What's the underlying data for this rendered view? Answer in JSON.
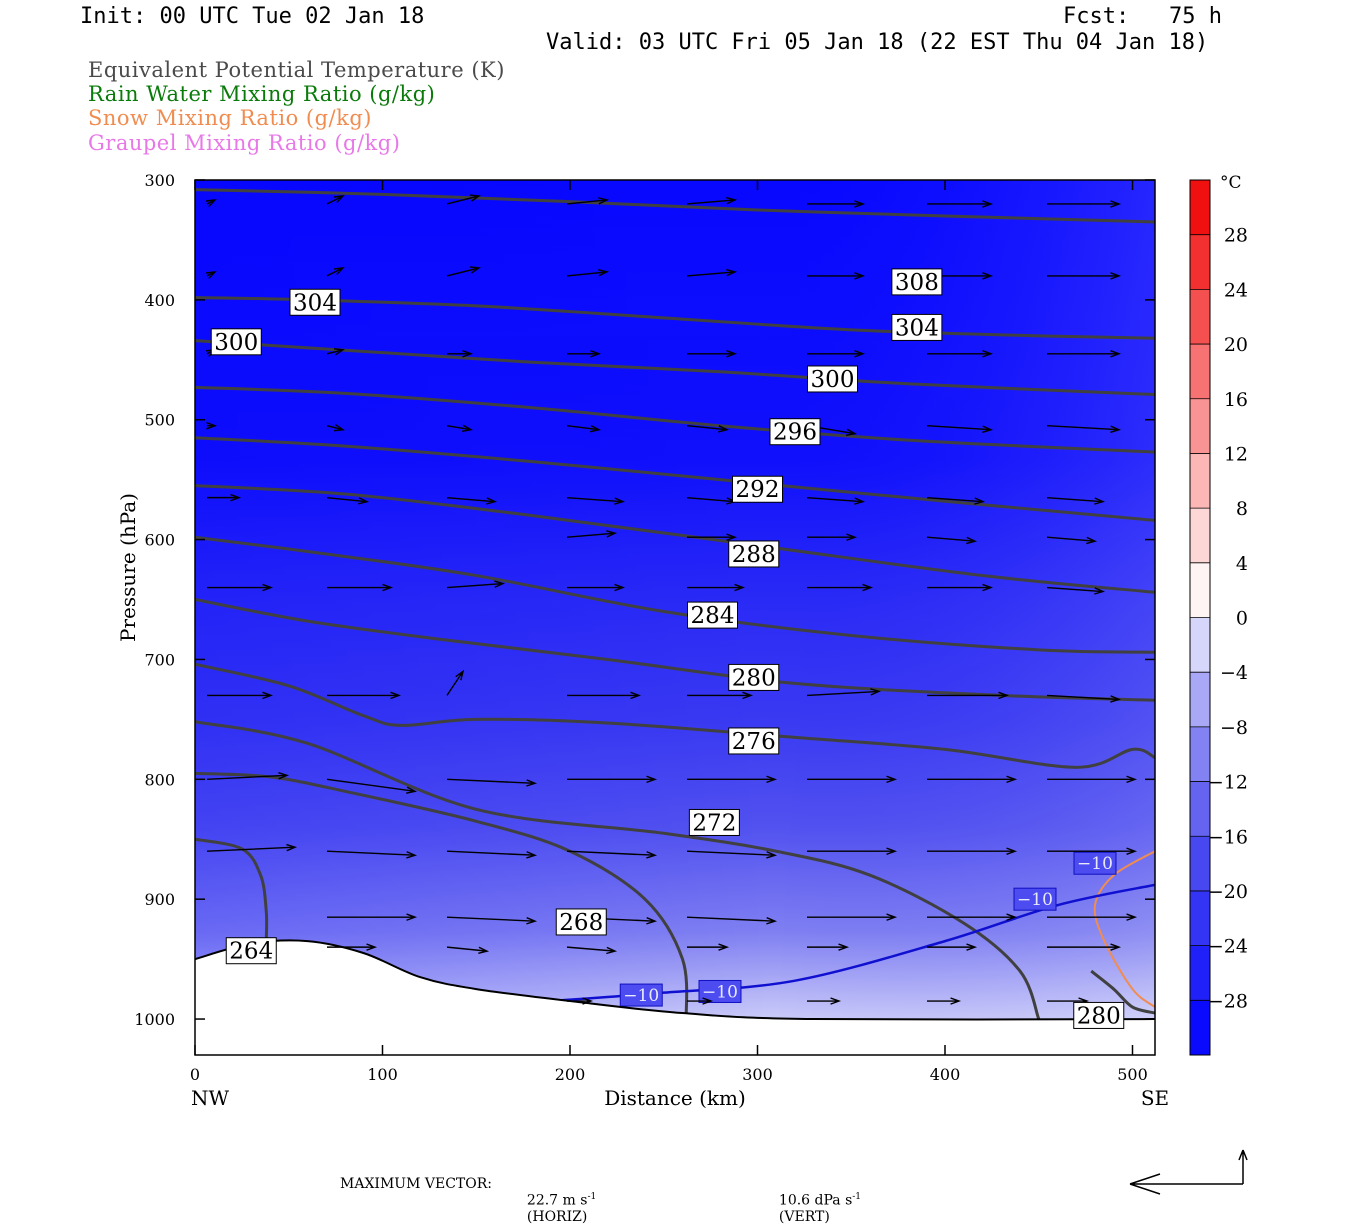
{
  "header": {
    "init": "Init: 00 UTC Tue 02 Jan 18",
    "fcst": "Fcst:   75 h",
    "valid": "Valid: 03 UTC Fri 05 Jan 18 (22 EST Thu 04 Jan 18)"
  },
  "legend": [
    {
      "text": "Equivalent Potential Temperature (K)",
      "color": "#4a4a4a"
    },
    {
      "text": "Rain Water Mixing Ratio (g/kg)",
      "color": "#0a7a0a"
    },
    {
      "text": "Snow Mixing Ratio (g/kg)",
      "color": "#f08c50"
    },
    {
      "text": "Graupel Mixing Ratio (g/kg)",
      "color": "#e878e8"
    }
  ],
  "footer": {
    "max_vector_label": "MAXIMUM VECTOR:",
    "horiz": "22.7 m s",
    "horiz_unit": "(HORIZ)",
    "vert": "10.6 dPa s",
    "vert_unit": "(VERT)",
    "exp": "-1"
  },
  "colors": {
    "theta_line": "#404040",
    "isotherm": "#1010d0",
    "snow": "#f08c50"
  },
  "chart_data": {
    "type": "cross-section",
    "xlabel": "Distance (km)",
    "ylabel": "Pressure (hPa)",
    "xlim": [
      0,
      512
    ],
    "ylim": [
      1030,
      300
    ],
    "x_ticks": [
      "0",
      "100",
      "200",
      "300",
      "400",
      "500"
    ],
    "y_ticks": [
      "300",
      "400",
      "500",
      "600",
      "700",
      "800",
      "900",
      "1000"
    ],
    "x_end_labels": {
      "left": "NW",
      "right": "SE"
    },
    "colorbar": {
      "unit": "°C",
      "labels": [
        "28",
        "24",
        "20",
        "16",
        "12",
        "8",
        "4",
        "0",
        "−4",
        "−8",
        "−12",
        "−16",
        "−20",
        "−24",
        "−28"
      ],
      "range": [
        -32,
        32
      ],
      "bands": [
        {
          "from": -32,
          "to": -28,
          "color": "#0a0aff"
        },
        {
          "from": -28,
          "to": -24,
          "color": "#2020f8"
        },
        {
          "from": -24,
          "to": -20,
          "color": "#3434f4"
        },
        {
          "from": -20,
          "to": -16,
          "color": "#4848f0"
        },
        {
          "from": -16,
          "to": -12,
          "color": "#6464f0"
        },
        {
          "from": -12,
          "to": -8,
          "color": "#8282f2"
        },
        {
          "from": -8,
          "to": -4,
          "color": "#a8a8f6"
        },
        {
          "from": -4,
          "to": 0,
          "color": "#d6d6fa"
        },
        {
          "from": 0,
          "to": 4,
          "color": "#fff4f4"
        },
        {
          "from": 4,
          "to": 8,
          "color": "#fdd6d6"
        },
        {
          "from": 8,
          "to": 12,
          "color": "#fbb6b6"
        },
        {
          "from": 12,
          "to": 16,
          "color": "#f99494"
        },
        {
          "from": 16,
          "to": 20,
          "color": "#f77272"
        },
        {
          "from": 20,
          "to": 24,
          "color": "#f55050"
        },
        {
          "from": 24,
          "to": 28,
          "color": "#f33030"
        },
        {
          "from": 28,
          "to": 32,
          "color": "#f01010"
        }
      ]
    },
    "theta_e_contours": [
      {
        "label": "308",
        "label_at": [
          385,
          385
        ],
        "points": [
          [
            0,
            308
          ],
          [
            100,
            312
          ],
          [
            200,
            318
          ],
          [
            300,
            325
          ],
          [
            400,
            330
          ],
          [
            512,
            335
          ]
        ]
      },
      {
        "label": "304",
        "label_at": [
          64,
          402
        ],
        "points": [
          [
            0,
            398
          ],
          [
            60,
            400
          ],
          [
            150,
            405
          ],
          [
            250,
            415
          ],
          [
            350,
            425
          ],
          [
            450,
            430
          ],
          [
            512,
            432
          ]
        ]
      },
      {
        "label": "304",
        "label_at": [
          385,
          423
        ],
        "points": [
          [
            0,
            398
          ],
          [
            60,
            400
          ],
          [
            150,
            405
          ],
          [
            250,
            415
          ],
          [
            350,
            425
          ],
          [
            450,
            430
          ],
          [
            512,
            432
          ]
        ]
      },
      {
        "label": "300",
        "label_at": [
          22,
          435
        ],
        "points": [
          [
            0,
            434
          ],
          [
            80,
            442
          ],
          [
            180,
            452
          ],
          [
            280,
            460
          ],
          [
            380,
            470
          ],
          [
            512,
            479
          ]
        ]
      },
      {
        "label": "300",
        "label_at": [
          340,
          466
        ],
        "points": [
          [
            0,
            434
          ],
          [
            80,
            442
          ],
          [
            180,
            452
          ],
          [
            280,
            460
          ],
          [
            380,
            470
          ],
          [
            512,
            479
          ]
        ]
      },
      {
        "label": "296",
        "label_at": [
          320,
          510
        ],
        "points": [
          [
            0,
            473
          ],
          [
            80,
            478
          ],
          [
            180,
            490
          ],
          [
            280,
            505
          ],
          [
            380,
            517
          ],
          [
            512,
            527
          ]
        ]
      },
      {
        "label": "292",
        "label_at": [
          300,
          558
        ],
        "points": [
          [
            0,
            515
          ],
          [
            80,
            522
          ],
          [
            180,
            535
          ],
          [
            280,
            550
          ],
          [
            400,
            568
          ],
          [
            512,
            584
          ]
        ]
      },
      {
        "label": "288",
        "label_at": [
          298,
          612
        ],
        "points": [
          [
            0,
            555
          ],
          [
            80,
            562
          ],
          [
            180,
            580
          ],
          [
            300,
            605
          ],
          [
            420,
            630
          ],
          [
            512,
            644
          ]
        ]
      },
      {
        "label": "284",
        "label_at": [
          276,
          663
        ],
        "points": [
          [
            0,
            598
          ],
          [
            70,
            612
          ],
          [
            150,
            630
          ],
          [
            250,
            660
          ],
          [
            350,
            680
          ],
          [
            450,
            692
          ],
          [
            512,
            694
          ]
        ]
      },
      {
        "label": "280",
        "label_at": [
          298,
          715
        ],
        "points": [
          [
            0,
            650
          ],
          [
            60,
            668
          ],
          [
            130,
            683
          ],
          [
            220,
            700
          ],
          [
            320,
            720
          ],
          [
            430,
            730
          ],
          [
            512,
            734
          ]
        ]
      },
      {
        "label": "276",
        "label_at": [
          298,
          768
        ],
        "points": [
          [
            0,
            704
          ],
          [
            50,
            722
          ],
          [
            90,
            747
          ],
          [
            110,
            755
          ],
          [
            150,
            750
          ],
          [
            220,
            753
          ],
          [
            320,
            765
          ],
          [
            400,
            775
          ],
          [
            470,
            790
          ],
          [
            500,
            775
          ],
          [
            512,
            782
          ]
        ]
      },
      {
        "label": "272",
        "label_at": [
          277,
          836
        ],
        "points": [
          [
            0,
            752
          ],
          [
            60,
            770
          ],
          [
            150,
            825
          ],
          [
            250,
            845
          ],
          [
            310,
            860
          ],
          [
            360,
            880
          ],
          [
            410,
            920
          ],
          [
            440,
            960
          ],
          [
            450,
            1000
          ]
        ]
      },
      {
        "label": "268",
        "label_at": [
          206,
          919
        ],
        "points": [
          [
            0,
            795
          ],
          [
            40,
            798
          ],
          [
            80,
            810
          ],
          [
            150,
            835
          ],
          [
            200,
            860
          ],
          [
            240,
            900
          ],
          [
            260,
            950
          ],
          [
            262,
            1000
          ]
        ]
      },
      {
        "label": "264",
        "label_at": [
          30,
          943
        ],
        "points": [
          [
            0,
            850
          ],
          [
            25,
            858
          ],
          [
            35,
            880
          ],
          [
            38,
            910
          ],
          [
            38,
            935
          ]
        ]
      },
      {
        "label": "280",
        "label_at": [
          482,
          997
        ],
        "points": [
          [
            478,
            960
          ],
          [
            490,
            975
          ],
          [
            500,
            990
          ],
          [
            512,
            995
          ]
        ]
      }
    ],
    "isotherm_minus10": {
      "label": "−10",
      "label_positions": [
        [
          238,
          980
        ],
        [
          280,
          977
        ],
        [
          448,
          900
        ],
        [
          480,
          870
        ]
      ],
      "points": [
        [
          190,
          985
        ],
        [
          250,
          978
        ],
        [
          320,
          968
        ],
        [
          400,
          935
        ],
        [
          460,
          905
        ],
        [
          512,
          888
        ]
      ]
    },
    "snow_contour": {
      "points": [
        [
          512,
          860
        ],
        [
          490,
          880
        ],
        [
          480,
          905
        ],
        [
          485,
          935
        ],
        [
          500,
          975
        ],
        [
          512,
          990
        ]
      ]
    },
    "terrain": {
      "points": [
        [
          0,
          950
        ],
        [
          30,
          937
        ],
        [
          60,
          935
        ],
        [
          90,
          945
        ],
        [
          120,
          965
        ],
        [
          150,
          975
        ],
        [
          200,
          985
        ],
        [
          260,
          995
        ],
        [
          330,
          1000
        ],
        [
          512,
          1000
        ]
      ]
    },
    "wind_vectors": {
      "rows": [
        {
          "p": 320,
          "x": [
            0,
            64,
            128,
            192,
            256,
            320,
            384,
            448
          ],
          "u": [
            2,
            4,
            8,
            10,
            12,
            14,
            16,
            18
          ],
          "w": [
            1,
            2,
            2,
            1,
            1,
            0,
            0,
            0
          ]
        },
        {
          "p": 380,
          "x": [
            0,
            64,
            128,
            192,
            256,
            320,
            384,
            448
          ],
          "u": [
            2,
            4,
            8,
            10,
            12,
            14,
            16,
            18
          ],
          "w": [
            1,
            2,
            2,
            1,
            1,
            0,
            0,
            0
          ]
        },
        {
          "p": 445,
          "x": [
            0,
            64,
            128,
            192,
            256,
            320,
            384,
            448
          ],
          "u": [
            2,
            4,
            6,
            8,
            12,
            14,
            16,
            18
          ],
          "w": [
            1,
            1,
            0,
            0,
            0,
            0,
            0,
            0
          ]
        },
        {
          "p": 505,
          "x": [
            0,
            64,
            128,
            192,
            256,
            320,
            384,
            448
          ],
          "u": [
            2,
            4,
            6,
            8,
            10,
            12,
            16,
            18
          ],
          "w": [
            0,
            -1,
            -1,
            -1,
            -1,
            -2,
            -1,
            -1
          ]
        },
        {
          "p": 565,
          "x": [
            0,
            64,
            128,
            192,
            256,
            320,
            384,
            448
          ],
          "u": [
            8,
            10,
            12,
            14,
            12,
            14,
            14,
            14
          ],
          "w": [
            0,
            -1,
            -1,
            -1,
            -1,
            -1,
            -1,
            -1
          ]
        },
        {
          "p": 598,
          "x": [
            192,
            256,
            320,
            384,
            448
          ],
          "u": [
            12,
            12,
            12,
            12,
            12
          ],
          "w": [
            1,
            0,
            0,
            -1,
            -1
          ]
        },
        {
          "p": 640,
          "x": [
            0,
            64,
            128,
            192,
            256,
            320,
            384,
            448
          ],
          "u": [
            16,
            16,
            14,
            14,
            14,
            16,
            16,
            14
          ],
          "w": [
            0,
            0,
            1,
            0,
            0,
            0,
            0,
            -1
          ]
        },
        {
          "p": 730,
          "x": [
            0,
            64,
            128,
            192,
            256,
            320,
            384,
            448
          ],
          "u": [
            16,
            18,
            4,
            18,
            16,
            18,
            20,
            18
          ],
          "w": [
            0,
            0,
            6,
            0,
            0,
            1,
            0,
            -1
          ]
        },
        {
          "p": 800,
          "x": [
            0,
            64,
            128,
            192,
            256,
            320,
            384,
            448
          ],
          "u": [
            20,
            22,
            22,
            22,
            22,
            22,
            22,
            22
          ],
          "w": [
            1,
            -3,
            -1,
            0,
            0,
            0,
            0,
            0
          ]
        },
        {
          "p": 860,
          "x": [
            0,
            64,
            128,
            192,
            256,
            320,
            384,
            448
          ],
          "u": [
            22,
            22,
            22,
            22,
            22,
            22,
            22,
            22
          ],
          "w": [
            1,
            -1,
            -1,
            -1,
            -1,
            0,
            0,
            0
          ]
        },
        {
          "p": 915,
          "x": [
            64,
            128,
            192,
            256,
            320,
            384,
            448
          ],
          "u": [
            22,
            22,
            22,
            22,
            22,
            22,
            22
          ],
          "w": [
            0,
            -1,
            -1,
            -1,
            0,
            0,
            0
          ]
        },
        {
          "p": 940,
          "x": [
            64,
            128,
            192,
            256,
            320,
            384,
            448
          ],
          "u": [
            12,
            10,
            12,
            10,
            10,
            12,
            18
          ],
          "w": [
            0,
            -1,
            -1,
            0,
            0,
            0,
            0
          ]
        },
        {
          "p": 985,
          "x": [
            192,
            256,
            320,
            384,
            448
          ],
          "u": [
            6,
            6,
            8,
            8,
            10
          ],
          "w": [
            0,
            0,
            0,
            0,
            0
          ]
        }
      ]
    }
  }
}
